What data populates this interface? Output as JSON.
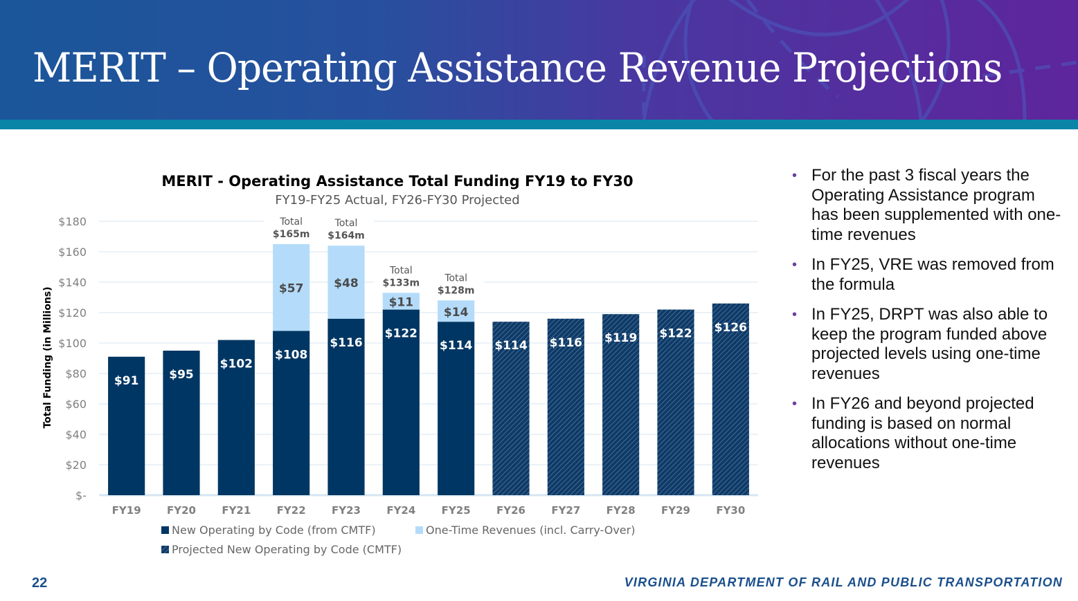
{
  "slide": {
    "title": "MERIT – Operating Assistance Revenue Projections",
    "page_number": "22",
    "footer_org": "VIRGINIA DEPARTMENT OF RAIL AND PUBLIC TRANSPORTATION"
  },
  "colors": {
    "actual": "#003663",
    "one_time": "#b4dcfa",
    "projected": "#0f3a66",
    "projected_hatch": "#4f7aa8",
    "gridline": "#d5e6f2",
    "axis_text": "#808080",
    "label_dark": "#4a4a4a",
    "bullet": "#6a3fa0",
    "footer": "#1a4f8c"
  },
  "bullets": [
    "For the past 3 fiscal years the Operating Assistance program has been supplemented with one-time revenues",
    "In FY25, VRE was removed from the formula",
    "In FY25, DRPT was also able to keep the program funded above projected levels using one-time revenues",
    "In FY26 and beyond projected funding is based on normal allocations without one-time revenues"
  ],
  "chart_data": {
    "type": "bar",
    "stacked": true,
    "title": "MERIT - Operating Assistance Total Funding FY19 to FY30",
    "subtitle": "FY19-FY25 Actual, FY26-FY30 Projected",
    "xlabel": "",
    "ylabel": "Total Funding (in Millions)",
    "ylim": [
      0,
      180
    ],
    "yticks": [
      0,
      20,
      40,
      60,
      80,
      100,
      120,
      140,
      160,
      180
    ],
    "ytick_labels": [
      "$-",
      "$20",
      "$40",
      "$60",
      "$80",
      "$100",
      "$120",
      "$140",
      "$160",
      "$180"
    ],
    "grid": true,
    "legend_position": "bottom-left",
    "categories": [
      "FY19",
      "FY20",
      "FY21",
      "FY22",
      "FY23",
      "FY24",
      "FY25",
      "FY26",
      "FY27",
      "FY28",
      "FY29",
      "FY30"
    ],
    "series": [
      {
        "name": "New Operating by Code (from CMTF)",
        "style": "solid-dark",
        "values": [
          91,
          95,
          102,
          108,
          116,
          122,
          114,
          null,
          null,
          null,
          null,
          null
        ],
        "labels": [
          "$91",
          "$95",
          "$102",
          "$108",
          "$116",
          "$122",
          "$114",
          "",
          "",
          "",
          "",
          ""
        ]
      },
      {
        "name": "One-Time Revenues (incl. Carry-Over)",
        "style": "solid-light",
        "values": [
          0,
          0,
          0,
          57,
          48,
          11,
          14,
          null,
          null,
          null,
          null,
          null
        ],
        "labels": [
          "",
          "",
          "",
          "$57",
          "$48",
          "$11",
          "$14",
          "",
          "",
          "",
          "",
          ""
        ]
      },
      {
        "name": "Projected New Operating by Code (CMTF)",
        "style": "hatched-dark",
        "values": [
          null,
          null,
          null,
          null,
          null,
          null,
          null,
          114,
          116,
          119,
          122,
          126
        ],
        "labels": [
          "",
          "",
          "",
          "",
          "",
          "",
          "",
          "$114",
          "$116",
          "$119",
          "$122",
          "$126"
        ]
      }
    ],
    "annotations": [
      {
        "category": "FY22",
        "line1": "Total",
        "line2": "$165m"
      },
      {
        "category": "FY23",
        "line1": "Total",
        "line2": "$164m"
      },
      {
        "category": "FY24",
        "line1": "Total",
        "line2": "$133m"
      },
      {
        "category": "FY25",
        "line1": "Total",
        "line2": "$128m"
      }
    ]
  }
}
